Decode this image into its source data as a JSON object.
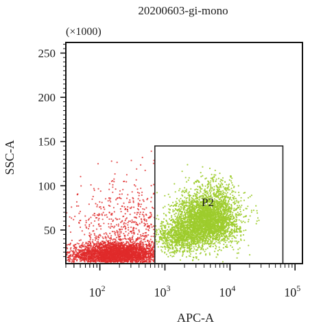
{
  "chart_data": {
    "type": "scatter",
    "title": "20200603-gi-mono",
    "y_multiplier_label": "(×1000)",
    "xlabel": "APC-A",
    "ylabel": "SSC-A",
    "x_scale": "log",
    "xlim": [
      30,
      130000
    ],
    "ylim": [
      12,
      262
    ],
    "x_ticks": [
      {
        "value": 100,
        "base": "10",
        "exp": "2"
      },
      {
        "value": 1000,
        "base": "10",
        "exp": "3"
      },
      {
        "value": 10000,
        "base": "10",
        "exp": "4"
      },
      {
        "value": 100000,
        "base": "10",
        "exp": "5"
      }
    ],
    "y_ticks": [
      50,
      100,
      150,
      200,
      250
    ],
    "grid": false,
    "gate": {
      "label": "P2",
      "x_range": [
        700,
        65000
      ],
      "y_range": [
        12,
        145
      ]
    },
    "series": [
      {
        "population": "ungated",
        "color": "#e02a2a",
        "clusters": [
          {
            "x_center": 180,
            "x_spread_log10": 0.35,
            "y_center": 22,
            "y_spread": 7,
            "n": 3600
          },
          {
            "x_center": 300,
            "x_spread_log10": 0.45,
            "y_center": 45,
            "y_spread": 22,
            "n": 700
          },
          {
            "x_center": 250,
            "x_spread_log10": 0.45,
            "y_center": 95,
            "y_spread": 22,
            "n": 90
          }
        ]
      },
      {
        "population": "P2",
        "color": "#9dcc2c",
        "clusters": [
          {
            "x_center": 4500,
            "x_spread_log10": 0.24,
            "y_center": 62,
            "y_spread": 14,
            "n": 3000
          },
          {
            "x_center": 1800,
            "x_spread_log10": 0.22,
            "y_center": 42,
            "y_spread": 9,
            "n": 900
          },
          {
            "x_center": 6000,
            "x_spread_log10": 0.2,
            "y_center": 92,
            "y_spread": 10,
            "n": 250
          }
        ]
      }
    ]
  }
}
